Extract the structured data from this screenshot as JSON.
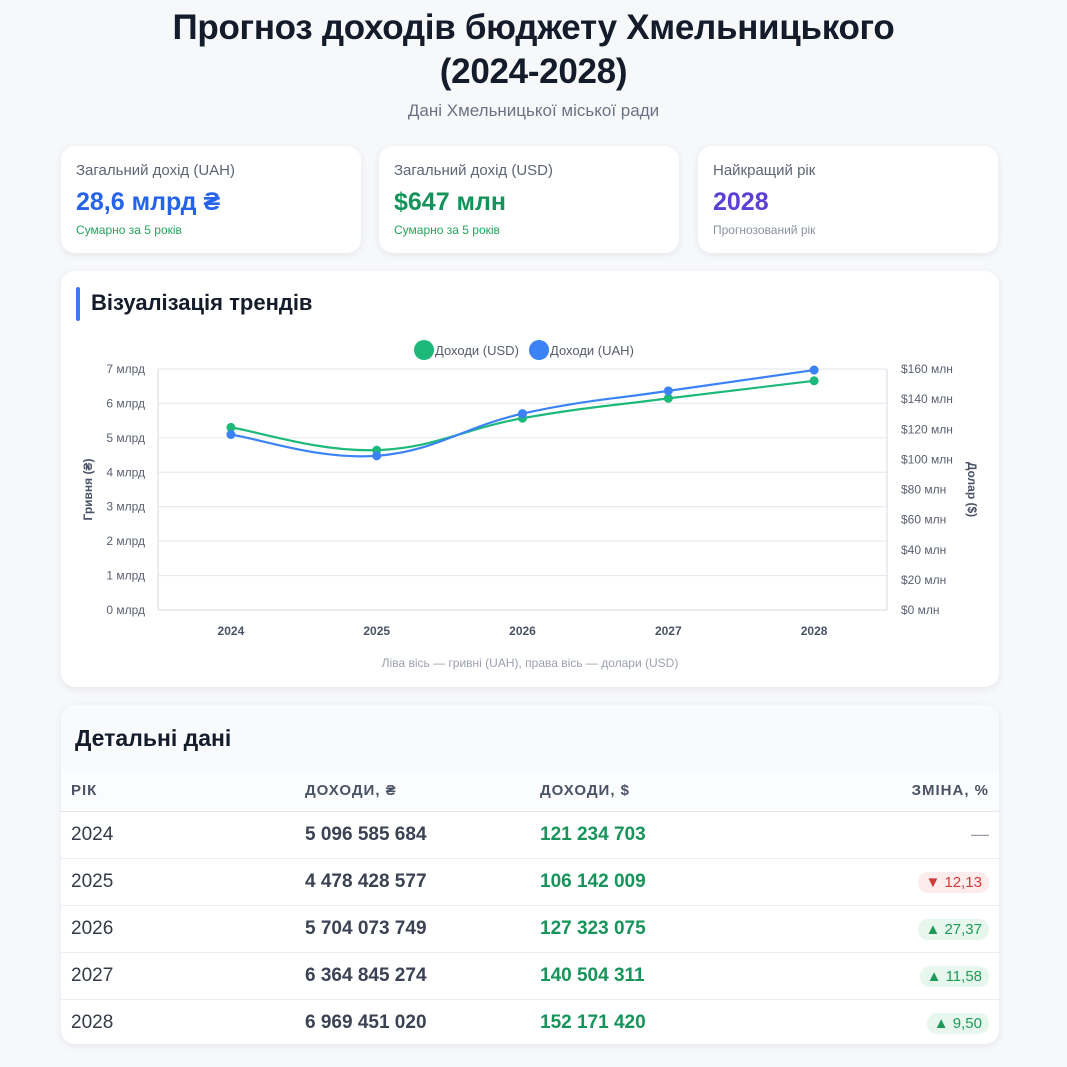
{
  "header": {
    "title_line1": "Прогноз доходів бюджету Хмельницького",
    "title_line2": "(2024-2028)",
    "subtitle": "Дані Хмельницької міської ради"
  },
  "kpis": [
    {
      "label": "Загальний дохід (UAH)",
      "value": "28,6 млрд ₴",
      "note": "Сумарно за 5 років",
      "value_color": "#2563eb",
      "note_color": "#22a55b"
    },
    {
      "label": "Загальний дохід (USD)",
      "value": "$647 млн",
      "note": "Сумарно за 5 років",
      "value_color": "#14935a",
      "note_color": "#22a55b"
    },
    {
      "label": "Найкращий рік",
      "value": "2028",
      "note": "Прогнозований рік",
      "value_color": "#5b3fd6",
      "note_color": "#8a91a0"
    }
  ],
  "chart_section": {
    "title": "Візуалізація трендів",
    "caption": "Ліва вісь — гривні (UAH), права вісь — долари (USD)"
  },
  "chart_data": {
    "type": "line",
    "categories": [
      "2024",
      "2025",
      "2026",
      "2027",
      "2028"
    ],
    "series": [
      {
        "name": "Доходи (USD)",
        "axis": "right",
        "color": "#1db97a",
        "values": [
          121234703,
          106142009,
          127323075,
          140504311,
          152171420
        ]
      },
      {
        "name": "Доходи (UAH)",
        "axis": "left",
        "color": "#3b82f6",
        "values": [
          5096585684,
          4478428577,
          5704073749,
          6364845274,
          6969451020
        ]
      }
    ],
    "y_left": {
      "label": "Гривня (₴)",
      "ylim": [
        0,
        7000000000
      ],
      "ticks": [
        "0 млрд",
        "1 млрд",
        "2 млрд",
        "3 млрд",
        "4 млрд",
        "5 млрд",
        "6 млрд",
        "7 млрд"
      ]
    },
    "y_right": {
      "label": "Долар ($)",
      "ylim": [
        0,
        160000000
      ],
      "ticks": [
        "$0 млн",
        "$20 млн",
        "$40 млн",
        "$60 млн",
        "$80 млн",
        "$100 млн",
        "$120 млн",
        "$140 млн",
        "$160 млн"
      ]
    },
    "legend_position": "top-center",
    "grid": true
  },
  "table_section": {
    "title": "Детальні дані",
    "headers": [
      "РІК",
      "ДОХОДИ, ₴",
      "ДОХОДИ, $",
      "ЗМІНА, %"
    ],
    "rows": [
      {
        "year": "2024",
        "uah": "5 096 585 684",
        "usd": "121 234 703",
        "change": "—",
        "trend": "none"
      },
      {
        "year": "2025",
        "uah": "4 478 428 577",
        "usd": "106 142 009",
        "change": "▼ 12,13",
        "trend": "down"
      },
      {
        "year": "2026",
        "uah": "5 704 073 749",
        "usd": "127 323 075",
        "change": "▲ 27,37",
        "trend": "up"
      },
      {
        "year": "2027",
        "uah": "6 364 845 274",
        "usd": "140 504 311",
        "change": "▲ 11,58",
        "trend": "up"
      },
      {
        "year": "2028",
        "uah": "6 969 451 020",
        "usd": "152 171 420",
        "change": "▲ 9,50",
        "trend": "up"
      }
    ]
  }
}
